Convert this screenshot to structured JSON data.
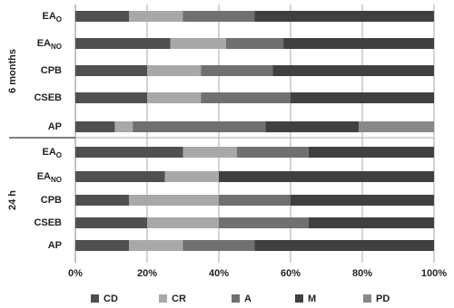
{
  "chart_data": [
    {
      "type": "bar",
      "orientation": "horizontal",
      "stacked": true,
      "panel_label": "6 months",
      "categories": [
        {
          "label": "EA",
          "sub": "O"
        },
        {
          "label": "EA",
          "sub": "NO"
        },
        "CPB",
        "CSEB",
        "AP"
      ],
      "series": [
        {
          "name": "CD",
          "color": "#505050",
          "values": [
            15,
            26.5,
            20,
            20,
            11
          ]
        },
        {
          "name": "CR",
          "color": "#a8a8a8",
          "values": [
            15,
            15.5,
            15,
            15,
            5
          ]
        },
        {
          "name": "A",
          "color": "#707070",
          "values": [
            20,
            16,
            20,
            25,
            37
          ]
        },
        {
          "name": "M",
          "color": "#404040",
          "values": [
            50,
            42,
            45,
            40,
            26
          ]
        },
        {
          "name": "PD",
          "color": "#888888",
          "values": [
            0,
            0,
            0,
            0,
            21
          ]
        }
      ],
      "xlim": [
        0,
        100
      ]
    },
    {
      "type": "bar",
      "orientation": "horizontal",
      "stacked": true,
      "panel_label": "24 h",
      "categories": [
        {
          "label": "EA",
          "sub": "O"
        },
        {
          "label": "EA",
          "sub": "NO"
        },
        "CPB",
        "CSEB",
        "AP"
      ],
      "series": [
        {
          "name": "CD",
          "color": "#505050",
          "values": [
            30,
            25,
            15,
            20,
            15
          ]
        },
        {
          "name": "CR",
          "color": "#a8a8a8",
          "values": [
            15,
            15,
            25,
            20,
            15
          ]
        },
        {
          "name": "A",
          "color": "#707070",
          "values": [
            20,
            0,
            20,
            25,
            20
          ]
        },
        {
          "name": "M",
          "color": "#404040",
          "values": [
            35,
            60,
            40,
            35,
            50
          ]
        },
        {
          "name": "PD",
          "color": "#888888",
          "values": [
            0,
            0,
            0,
            0,
            0
          ]
        }
      ],
      "xlim": [
        0,
        100
      ],
      "xticks": [
        {
          "value": 0,
          "label": "0%"
        },
        {
          "value": 20,
          "label": "20%"
        },
        {
          "value": 40,
          "label": "40%"
        },
        {
          "value": 60,
          "label": "60%"
        },
        {
          "value": 80,
          "label": "80%"
        },
        {
          "value": 100,
          "label": "100%"
        }
      ],
      "grid": true
    }
  ]
}
